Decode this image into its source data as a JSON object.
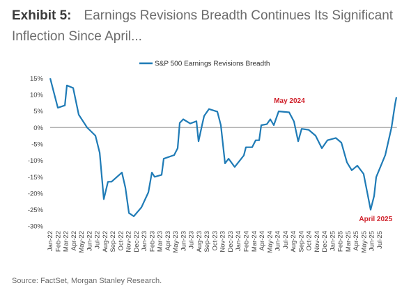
{
  "header": {
    "exhibit": "Exhibit 5:",
    "title_line1": "Earnings Revisions Breadth Continues Its Significant",
    "title_line2": "Inflection Since April..."
  },
  "source": "Source: FactSet, Morgan Stanley Research.",
  "colors": {
    "series": "#1f7bb6",
    "annotation": "#d0202a",
    "zero_line": "#9a9a9a"
  },
  "chart_data": {
    "type": "line",
    "title": "",
    "xlabel": "",
    "ylabel": "",
    "ylim": [
      -30,
      15
    ],
    "yticks": [
      15,
      10,
      5,
      0,
      -5,
      -10,
      -15,
      -20,
      -25,
      -30
    ],
    "ytick_labels": [
      "15%",
      "10%",
      "5%",
      "0%",
      "-5%",
      "-10%",
      "-15%",
      "-20%",
      "-25%",
      "-30%"
    ],
    "xtick_labels": [
      "Jan-22",
      "Feb-22",
      "Mar-22",
      "Apr-22",
      "May-22",
      "Jun-22",
      "Jul-22",
      "Aug-22",
      "Sep-22",
      "Oct-22",
      "Nov-22",
      "Dec-22",
      "Jan-23",
      "Feb-23",
      "Mar-23",
      "Apr-23",
      "May-23",
      "Jun-23",
      "Jul-23",
      "Aug-23",
      "Sep-23",
      "Oct-23",
      "Nov-23",
      "Dec-23",
      "Jan-24",
      "Feb-24",
      "Mar-24",
      "Apr-24",
      "May-24",
      "Jun-24",
      "Jul-24",
      "Aug-24",
      "Sep-24",
      "Oct-24",
      "Nov-24",
      "Dec-24",
      "Jan-25",
      "Feb-25",
      "Mar-25",
      "Apr-25",
      "May-25",
      "Jun-25",
      "Jul-25"
    ],
    "x_units": "months since Jan-22",
    "legend": {
      "label": "S&P 500 Earnings Revisions Breadth",
      "position": "top-center"
    },
    "grid": false,
    "series": [
      {
        "name": "S&P 500 Earnings Revisions Breadth",
        "x": [
          0,
          0.98,
          1.87,
          2.13,
          2.93,
          3.64,
          4.71,
          5.77,
          6.31,
          6.84,
          7.37,
          7.82,
          9.15,
          9.59,
          10.04,
          10.66,
          11.63,
          12.52,
          12.97,
          13.32,
          14.21,
          14.48,
          15.81,
          16.25,
          16.52,
          16.96,
          17.85,
          18.65,
          18.92,
          19.36,
          19.63,
          20.25,
          21.31,
          21.76,
          22.29,
          22.74,
          23.53,
          24.69,
          24.96,
          25.75,
          26.2,
          26.64,
          26.91,
          27.62,
          28.06,
          28.51,
          29.13,
          30.46,
          31.08,
          31.62,
          32.06,
          32.95,
          33.84,
          34.64,
          35.35,
          36.41,
          37.12,
          37.83,
          38.45,
          39.16,
          39.96,
          40.85,
          41.3,
          41.56,
          42.72,
          43.52,
          43.96,
          44.14
        ],
        "values": [
          15,
          6,
          6.7,
          12.8,
          12,
          3.9,
          0,
          -2.5,
          -7.7,
          -21.8,
          -16.5,
          -16.5,
          -13.7,
          -18.3,
          -26,
          -27,
          -24.3,
          -19.7,
          -13.7,
          -15,
          -14.4,
          -9.5,
          -8.4,
          -6.3,
          1.4,
          2.5,
          1.2,
          1.9,
          -4.2,
          0.7,
          3.5,
          5.6,
          4.8,
          0.7,
          -10.9,
          -9.5,
          -12,
          -8.5,
          -6,
          -6,
          -3.9,
          -3.9,
          0.7,
          1,
          2.5,
          0.7,
          4.9,
          4.6,
          1.8,
          -4.2,
          -0.4,
          -0.7,
          -2.5,
          -6.3,
          -3.9,
          -3.2,
          -4.6,
          -10.6,
          -13,
          -11.6,
          -14.1,
          -25,
          -20.8,
          -15.1,
          -8.4,
          0,
          7,
          9.2
        ]
      }
    ],
    "annotations": [
      {
        "text": "May 2024",
        "x": 30.5,
        "y": 7.5
      },
      {
        "text": "April 2025",
        "x": 41.5,
        "y": -28.5
      }
    ]
  }
}
